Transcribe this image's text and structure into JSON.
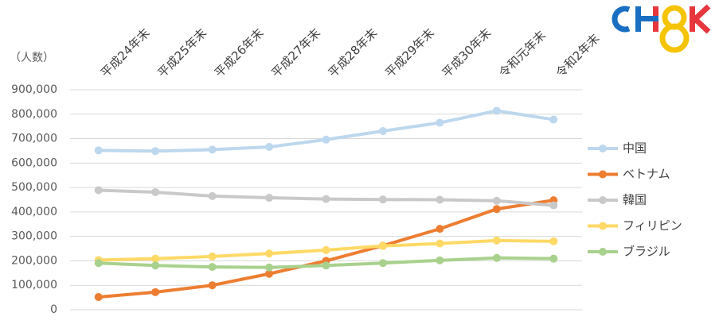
{
  "chart_data": {
    "type": "line",
    "y_label": "（人数）",
    "categories": [
      "平成24年末",
      "平成25年末",
      "平成26年末",
      "平成27年末",
      "平成28年末",
      "平成29年末",
      "平成30年末",
      "令和元年末",
      "令和2年末"
    ],
    "series": [
      {
        "name": "中国",
        "color": "#bdd7ee",
        "values": [
          652000,
          649000,
          655000,
          666000,
          696000,
          731000,
          765000,
          814000,
          778000
        ]
      },
      {
        "name": "ベトナム",
        "color": "#ed7d31",
        "values": [
          52000,
          72000,
          100000,
          147000,
          200000,
          262000,
          331000,
          412000,
          448000
        ]
      },
      {
        "name": "韓国",
        "color": "#c9c9c9",
        "values": [
          489000,
          481000,
          465000,
          458000,
          453000,
          451000,
          450000,
          446000,
          427000
        ]
      },
      {
        "name": "フィリピン",
        "color": "#ffd966",
        "values": [
          203000,
          209000,
          218000,
          230000,
          244000,
          261000,
          271000,
          283000,
          280000
        ]
      },
      {
        "name": "ブラジル",
        "color": "#a9d18e",
        "values": [
          191000,
          181000,
          175000,
          173000,
          181000,
          191000,
          202000,
          212000,
          209000
        ]
      }
    ],
    "ylim": [
      0,
      900000
    ],
    "yticks": [
      0,
      {
        "value": 100000,
        "label": "100,000"
      },
      {
        "value": 200000,
        "label": "200,000"
      },
      {
        "value": 300000,
        "label": "300,000"
      },
      {
        "value": 400000,
        "label": "400,000"
      },
      {
        "value": 500000,
        "label": "500,000"
      },
      {
        "value": 600000,
        "label": "600,000"
      },
      {
        "value": 700000,
        "label": "700,000"
      },
      {
        "value": 800000,
        "label": "800,000"
      },
      {
        "value": 900000,
        "label": "900,000"
      }
    ],
    "grid": true,
    "legend": "right"
  }
}
